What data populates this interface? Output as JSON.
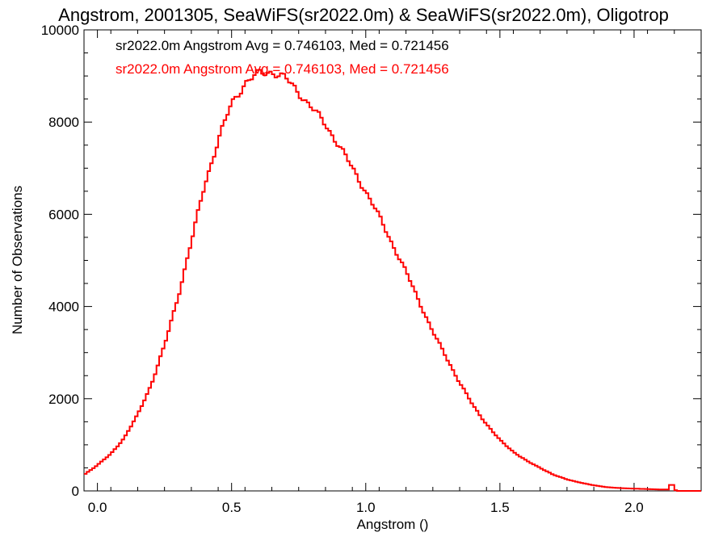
{
  "chart_data": {
    "type": "line",
    "title": "Angstrom, 2001305, SeaWiFS(sr2022.0m) & SeaWiFS(sr2022.0m), Oligotrop",
    "xlabel": "Angstrom ()",
    "ylabel": "Number of Observations",
    "xlim": [
      -0.05,
      2.25
    ],
    "ylim": [
      0,
      10000
    ],
    "x_ticks": [
      0.0,
      0.5,
      1.0,
      1.5,
      2.0
    ],
    "x_tick_labels": [
      "0.0",
      "0.5",
      "1.0",
      "1.5",
      "2.0"
    ],
    "y_ticks": [
      0,
      2000,
      4000,
      6000,
      8000,
      10000
    ],
    "y_tick_labels": [
      "0",
      "2000",
      "4000",
      "6000",
      "8000",
      "10000"
    ],
    "grid": false,
    "annotations": [
      {
        "text": "sr2022.0m Angstrom Avg = 0.746103, Med = 0.721456",
        "color": "#000000"
      },
      {
        "text": "sr2022.0m Angstrom Avg = 0.746103, Med = 0.721456",
        "color": "#ff0000"
      }
    ],
    "series": [
      {
        "color": "#ff0000",
        "step": true,
        "x": [
          -0.05,
          0.0,
          0.05,
          0.1,
          0.15,
          0.2,
          0.25,
          0.3,
          0.35,
          0.4,
          0.45,
          0.5,
          0.55,
          0.6,
          0.65,
          0.7,
          0.75,
          0.8,
          0.85,
          0.9,
          0.95,
          1.0,
          1.05,
          1.1,
          1.15,
          1.2,
          1.25,
          1.3,
          1.35,
          1.4,
          1.45,
          1.5,
          1.55,
          1.6,
          1.65,
          1.7,
          1.75,
          1.8,
          1.85,
          1.9,
          1.95,
          2.0,
          2.05,
          2.1,
          2.13,
          2.14,
          2.15,
          2.16,
          2.2,
          2.25
        ],
        "y": [
          350,
          560,
          800,
          1150,
          1650,
          2300,
          3150,
          4200,
          5400,
          6650,
          7600,
          8400,
          8850,
          9050,
          9100,
          8950,
          8650,
          8300,
          7950,
          7500,
          7000,
          6500,
          5950,
          5350,
          4750,
          4100,
          3450,
          2900,
          2350,
          1850,
          1450,
          1100,
          850,
          650,
          500,
          350,
          250,
          180,
          120,
          80,
          60,
          50,
          40,
          30,
          30,
          230,
          30,
          0,
          0,
          0
        ]
      }
    ]
  }
}
